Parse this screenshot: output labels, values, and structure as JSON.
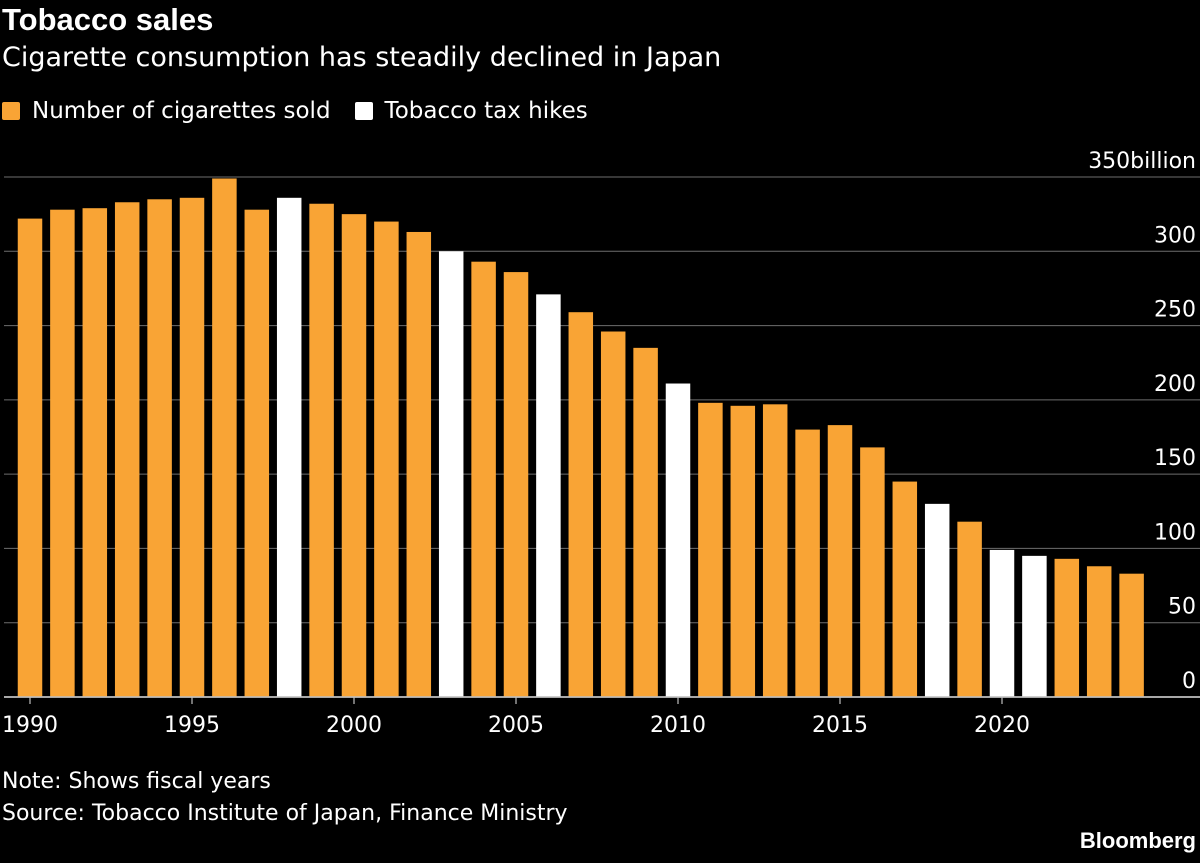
{
  "title": "Tobacco sales",
  "subtitle": "Cigarette consumption has steadily declined in Japan",
  "legend": [
    {
      "label": "Number of cigarettes sold",
      "color": "#f9a435"
    },
    {
      "label": "Tobacco tax hikes",
      "color": "#ffffff"
    }
  ],
  "note": "Note: Shows fiscal years",
  "source": "Source: Tobacco Institute of Japan, Finance Ministry",
  "brand": "Bloomberg",
  "chart_data": {
    "type": "bar",
    "title": "Tobacco sales",
    "xlabel": "",
    "ylabel": "",
    "ylim": [
      0,
      350
    ],
    "y_ticks": [
      0,
      50,
      100,
      150,
      200,
      250,
      300,
      350
    ],
    "y_tick_labels": [
      "0",
      "50",
      "100",
      "150",
      "200",
      "250",
      "300",
      "350billion"
    ],
    "x_tick_years": [
      1990,
      1995,
      2000,
      2005,
      2010,
      2015,
      2020
    ],
    "grid": true,
    "legend_position": "top-left",
    "series": [
      {
        "name": "Number of cigarettes sold",
        "color": "#f9a435",
        "points": [
          {
            "year": 1990,
            "value": 322
          },
          {
            "year": 1991,
            "value": 328
          },
          {
            "year": 1992,
            "value": 329
          },
          {
            "year": 1993,
            "value": 333
          },
          {
            "year": 1994,
            "value": 335
          },
          {
            "year": 1995,
            "value": 336
          },
          {
            "year": 1996,
            "value": 349
          },
          {
            "year": 1997,
            "value": 328
          },
          {
            "year": 1999,
            "value": 332
          },
          {
            "year": 2000,
            "value": 325
          },
          {
            "year": 2001,
            "value": 320
          },
          {
            "year": 2002,
            "value": 313
          },
          {
            "year": 2004,
            "value": 293
          },
          {
            "year": 2005,
            "value": 286
          },
          {
            "year": 2007,
            "value": 259
          },
          {
            "year": 2008,
            "value": 246
          },
          {
            "year": 2009,
            "value": 235
          },
          {
            "year": 2011,
            "value": 198
          },
          {
            "year": 2012,
            "value": 196
          },
          {
            "year": 2013,
            "value": 197
          },
          {
            "year": 2014,
            "value": 180
          },
          {
            "year": 2015,
            "value": 183
          },
          {
            "year": 2016,
            "value": 168
          },
          {
            "year": 2017,
            "value": 145
          },
          {
            "year": 2019,
            "value": 118
          },
          {
            "year": 2022,
            "value": 93
          },
          {
            "year": 2023,
            "value": 88
          },
          {
            "year": 2024,
            "value": 83
          }
        ]
      },
      {
        "name": "Tobacco tax hikes",
        "color": "#ffffff",
        "points": [
          {
            "year": 1998,
            "value": 336
          },
          {
            "year": 2003,
            "value": 300
          },
          {
            "year": 2006,
            "value": 271
          },
          {
            "year": 2010,
            "value": 211
          },
          {
            "year": 2018,
            "value": 130
          },
          {
            "year": 2020,
            "value": 99
          },
          {
            "year": 2021,
            "value": 95
          }
        ]
      }
    ]
  }
}
